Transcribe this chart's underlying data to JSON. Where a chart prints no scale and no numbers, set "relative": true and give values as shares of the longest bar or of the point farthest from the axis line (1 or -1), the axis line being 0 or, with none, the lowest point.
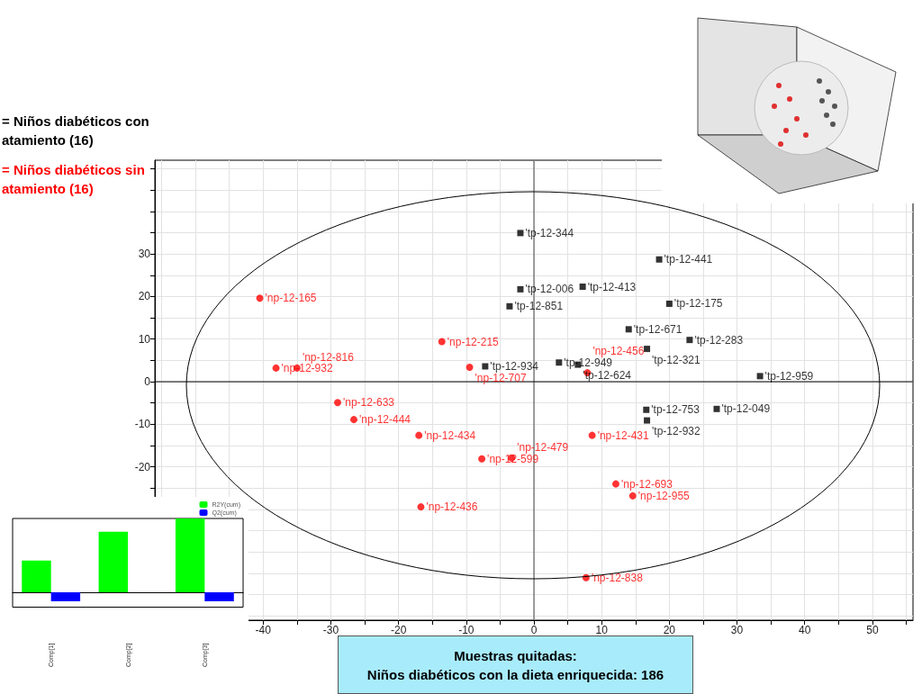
{
  "chart_data": [
    {
      "type": "scatter",
      "legend": "top left",
      "grid": true,
      "xlim": [
        -56,
        56
      ],
      "ylim": [
        -56,
        52
      ],
      "xticks": [
        {
          "value": -55,
          "label": null
        },
        {
          "value": -50,
          "label": null
        },
        {
          "value": -45,
          "label": null
        },
        -40,
        {
          "value": -35,
          "label": null
        },
        -30,
        {
          "value": -25,
          "label": null
        },
        -20,
        {
          "value": -15,
          "label": null
        },
        -10,
        {
          "value": -5,
          "label": null
        },
        0,
        {
          "value": 5,
          "label": null
        },
        10,
        {
          "value": 15,
          "label": null
        },
        20,
        {
          "value": 25,
          "label": null
        },
        30,
        {
          "value": 35,
          "label": null
        },
        40,
        {
          "value": 45,
          "label": null
        },
        50,
        {
          "value": 55,
          "label": null
        }
      ],
      "yticks": [
        {
          "value": -55,
          "label": null
        },
        {
          "value": -50,
          "label": null
        },
        {
          "value": -45,
          "label": null
        },
        {
          "value": -40,
          "label": null
        },
        {
          "value": -35,
          "label": null
        },
        {
          "value": -30,
          "label": null
        },
        {
          "value": -25,
          "label": null
        },
        -20,
        {
          "value": -15,
          "label": null
        },
        -10,
        {
          "value": -5,
          "label": null
        },
        0,
        {
          "value": 5,
          "label": null
        },
        10,
        {
          "value": 15,
          "label": null
        },
        20,
        {
          "value": 25,
          "label": null
        },
        30,
        {
          "value": 35,
          "label": null
        },
        {
          "value": 40,
          "label": null
        },
        {
          "value": 45,
          "label": null
        },
        {
          "value": 50,
          "label": null
        }
      ],
      "ref_lines": [
        {
          "axis": "x",
          "value": 0,
          "color": "#444444"
        },
        {
          "axis": "y",
          "value": 0,
          "color": "#000000"
        }
      ],
      "annotations": [
        "Muestras quitadas:\nNiños diabéticos con la dieta enriquecida: 186"
      ],
      "series": [
        {
          "name": "= Niños diabéticos con atamiento (16)",
          "color": "#000000",
          "marker": "square",
          "x": [
            -2.0,
            18.5,
            -2.0,
            7.2,
            -3.6,
            20.0,
            14.0,
            23.0,
            16.7,
            3.7,
            6.5,
            -7.2,
            33.4,
            16.6,
            27.0,
            16.7
          ],
          "values": [
            34.9,
            28.7,
            21.7,
            22.3,
            17.7,
            18.3,
            12.3,
            9.8,
            7.7,
            4.5,
            4.0,
            3.6,
            1.3,
            -6.6,
            -6.4,
            -9.1
          ],
          "value_labels": [
            "'tp-12-344",
            "'tp-12-441",
            "'tp-12-006",
            "'tp-12-413",
            "'tp-12-851",
            "'tp-12-175",
            "'tp-12-671",
            "'tp-12-283",
            "'tp-12-321",
            "'tp-12-949",
            "'tp-12-624",
            "'tp-12-934",
            "'tp-12-959",
            "'tp-12-753",
            "'tp-12-049",
            "'tp-12-932"
          ]
        },
        {
          "name": "= Niños diabéticos sin atamiento (16)",
          "color": "#ff0000",
          "marker": "circle",
          "x": [
            -40.5,
            -13.6,
            -38.1,
            -35.0,
            -9.5,
            7.9,
            -29.0,
            -26.6,
            -17.0,
            8.6,
            -7.7,
            -3.3,
            12.1,
            14.6,
            -16.7,
            7.7
          ],
          "values": [
            19.6,
            9.4,
            3.2,
            3.2,
            3.4,
            2.1,
            -4.9,
            -8.9,
            -12.6,
            -12.6,
            -18.1,
            -17.9,
            -24.0,
            -26.8,
            -29.4,
            -46.0
          ],
          "value_labels": [
            "'np-12-165",
            "'np-12-215",
            "'np-12-932",
            "'np-12-816",
            "'np-12-707",
            "'np-12-456",
            "'np-12-633",
            "'np-12-444",
            "'np-12-434",
            "'np-12-431",
            "'np-12-599",
            "'np-12-479",
            "'np-12-693",
            "'np-12-955",
            "'np-12-436",
            "'np-12-838"
          ]
        }
      ]
    },
    {
      "type": "bar",
      "relative": true,
      "legend": "top right",
      "categories": [
        "Comp[1]",
        "Comp[2]",
        "Comp[3]"
      ],
      "series": [
        {
          "name": "R2Y(cum)",
          "color": "#00ff00",
          "values": [
            0.43,
            0.82,
            1
          ]
        },
        {
          "name": "Q2(cum)",
          "color": "#0000ff",
          "values": [
            -0.12,
            0,
            -0.12
          ]
        }
      ]
    }
  ]
}
